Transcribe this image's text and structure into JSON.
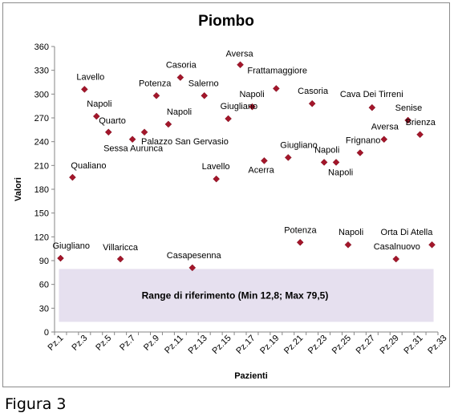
{
  "figure_caption": "Figura 3",
  "chart_data": {
    "type": "scatter",
    "title": "Piombo",
    "xlabel": "Pazienti",
    "ylabel": "Valori",
    "ylim": [
      0,
      360
    ],
    "y_ticks": [
      0,
      30,
      60,
      90,
      120,
      150,
      180,
      210,
      240,
      270,
      300,
      330,
      360
    ],
    "grid": false,
    "legend": "none",
    "marker_color": "#a3162a",
    "x_tick_labels": [
      "Pz.1",
      "Pz.3",
      "Pz.5",
      "Pz.7",
      "Pz.9",
      "Pz.11",
      "Pz.13",
      "Pz.15",
      "Pz.17",
      "Pz.19",
      "Pz.21",
      "Pz.23",
      "Pz.25",
      "Pz.27",
      "Pz.29",
      "Pz.31",
      "Pz.33"
    ],
    "reference_range": {
      "min": 12.8,
      "max": 79.5,
      "label": "Range di riferimento  (Min 12,8; Max 79,5)",
      "color": "#e6e0ef"
    },
    "points": [
      {
        "x": 1,
        "y": 93,
        "label": "Giugliano"
      },
      {
        "x": 2,
        "y": 195,
        "label": "Qualiano"
      },
      {
        "x": 3,
        "y": 306,
        "label": "Lavello"
      },
      {
        "x": 4,
        "y": 272,
        "label": "Napoli"
      },
      {
        "x": 5,
        "y": 252,
        "label": "Quarto"
      },
      {
        "x": 6,
        "y": 92,
        "label": "Villaricca"
      },
      {
        "x": 7,
        "y": 243,
        "label": "Sessa Aurunca"
      },
      {
        "x": 8,
        "y": 252,
        "label": "Palazzo San Gervasio"
      },
      {
        "x": 9,
        "y": 298,
        "label": "Potenza"
      },
      {
        "x": 10,
        "y": 262,
        "label": "Napoli"
      },
      {
        "x": 11,
        "y": 321,
        "label": "Casoria"
      },
      {
        "x": 12,
        "y": 81,
        "label": "Casapesenna"
      },
      {
        "x": 13,
        "y": 298,
        "label": "Salerno"
      },
      {
        "x": 14,
        "y": 193,
        "label": "Lavello"
      },
      {
        "x": 15,
        "y": 269,
        "label": "Giugliano"
      },
      {
        "x": 16,
        "y": 337,
        "label": "Aversa"
      },
      {
        "x": 17,
        "y": 284,
        "label": "Napoli"
      },
      {
        "x": 18,
        "y": 216,
        "label": "Acerra"
      },
      {
        "x": 19,
        "y": 307,
        "label": "Frattamaggiore"
      },
      {
        "x": 20,
        "y": 220,
        "label": "Giugliano"
      },
      {
        "x": 21,
        "y": 113,
        "label": "Potenza"
      },
      {
        "x": 22,
        "y": 288,
        "label": "Casoria"
      },
      {
        "x": 23,
        "y": 214,
        "label": "Napoli"
      },
      {
        "x": 24,
        "y": 214,
        "label": "Napoli"
      },
      {
        "x": 25,
        "y": 110,
        "label": "Napoli"
      },
      {
        "x": 26,
        "y": 226,
        "label": "Frignano"
      },
      {
        "x": 27,
        "y": 283,
        "label": "Cava Dei Tirreni"
      },
      {
        "x": 28,
        "y": 243,
        "label": "Aversa"
      },
      {
        "x": 29,
        "y": 92,
        "label": "Casalnuovo"
      },
      {
        "x": 30,
        "y": 267,
        "label": "Senise"
      },
      {
        "x": 31,
        "y": 249,
        "label": "Brienza"
      },
      {
        "x": 32,
        "y": 110,
        "label": "Orta Di Atella"
      }
    ]
  }
}
